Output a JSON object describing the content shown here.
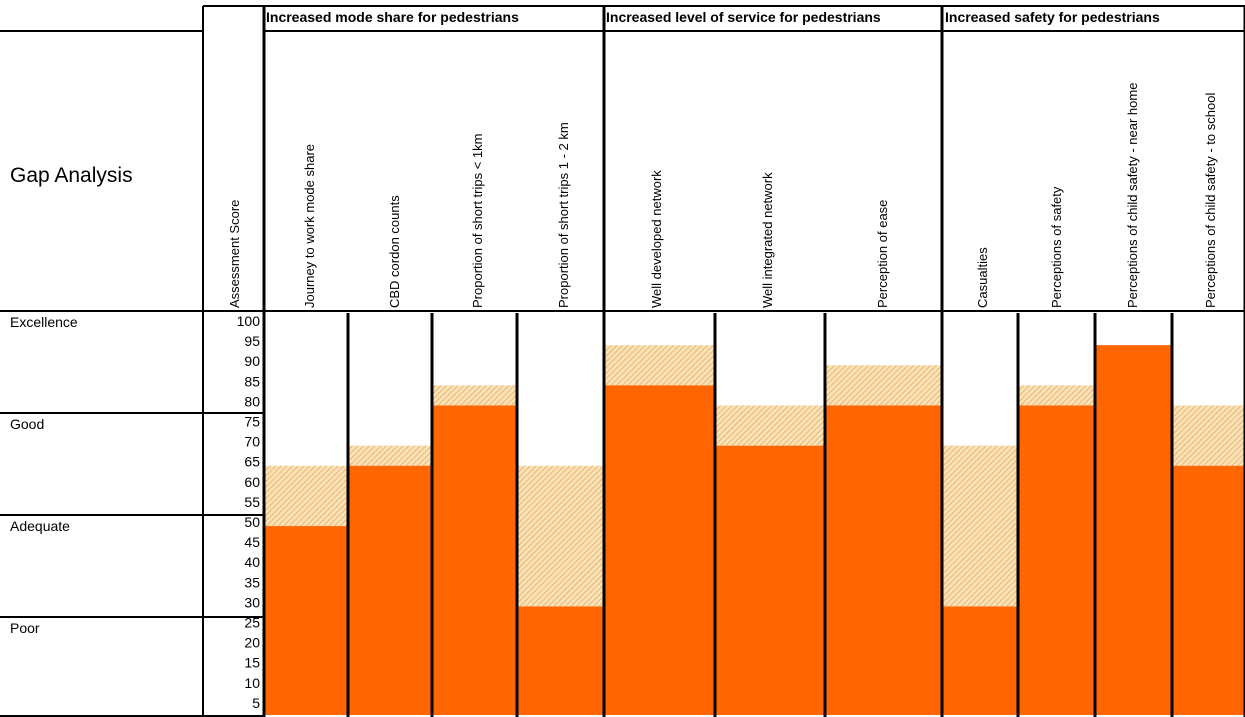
{
  "chart_data": {
    "type": "bar",
    "title": "Gap Analysis",
    "ylabel": "Assessment Score",
    "ylim": [
      0,
      100
    ],
    "yticks": [
      100,
      95,
      90,
      85,
      80,
      75,
      70,
      65,
      60,
      55,
      50,
      45,
      40,
      35,
      30,
      25,
      20,
      15,
      10,
      5
    ],
    "bands": [
      {
        "label": "Excellence",
        "from": 100,
        "to": 80
      },
      {
        "label": "Good",
        "from": 75,
        "to": 55
      },
      {
        "label": "Adequate",
        "from": 50,
        "to": 30
      },
      {
        "label": "Poor",
        "from": 25,
        "to": 5
      }
    ],
    "groups": [
      {
        "label": "Increased mode share for pedestrians",
        "categories": [
          "Journey to work mode share",
          "CBD cordon counts",
          "Proportion of short trips < 1km",
          "Proportion of short trips 1 - 2 km"
        ]
      },
      {
        "label": "Increased level of service for pedestrians",
        "categories": [
          "Well developed network",
          "Well integrated network",
          "Perception of ease"
        ]
      },
      {
        "label": "Increased safety for pedestrians",
        "categories": [
          "Casualties",
          "Perceptions of safety",
          "Perceptions of child safety - near home",
          "Perceptions of child safety - to school"
        ]
      }
    ],
    "series": [
      {
        "values": [
          47,
          62,
          77,
          27,
          82,
          67,
          77,
          27,
          77,
          92,
          62
        ],
        "color": "#ff6600"
      },
      {
        "values": [
          62,
          67,
          82,
          62,
          92,
          77,
          87,
          67,
          82,
          92,
          77
        ],
        "color": "#f3c27a"
      }
    ]
  }
}
